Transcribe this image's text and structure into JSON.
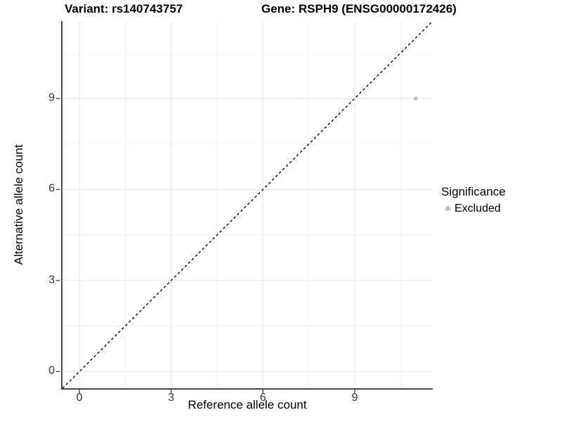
{
  "chart_data": {
    "type": "scatter",
    "title_left": "Variant: rs140743757",
    "title_right": "Gene: RSPH9 (ENSG00000172426)",
    "xlabel": "Reference allele count",
    "ylabel": "Alternative allele count",
    "xlim": [
      -0.55,
      11.55
    ],
    "ylim": [
      -0.55,
      11.55
    ],
    "x_breaks": [
      0,
      3,
      6,
      9
    ],
    "y_breaks": [
      0,
      3,
      6,
      9
    ],
    "x_minor_breaks": [
      1.5,
      4.5,
      7.5,
      10.5
    ],
    "y_minor_breaks": [
      1.5,
      4.5,
      7.5,
      10.5
    ],
    "grid": true,
    "identity_line": {
      "style": "dashed",
      "from": [
        -0.55,
        -0.55
      ],
      "to": [
        11.55,
        11.55
      ],
      "color": "#000000"
    },
    "series": [
      {
        "name": "Excluded",
        "color": "#bcbcbc",
        "points": [
          [
            11,
            9
          ]
        ]
      }
    ],
    "legend": {
      "title": "Significance",
      "position": "right",
      "entries": [
        {
          "label": "Excluded",
          "color": "#b9b9b9"
        }
      ]
    },
    "colors": {
      "major_grid": "#e6e6e6",
      "minor_grid": "#f2f2f2",
      "axis_line": "#4a4a4a",
      "tick_mark": "#4a4a4a",
      "tick_text": "#333333"
    }
  }
}
